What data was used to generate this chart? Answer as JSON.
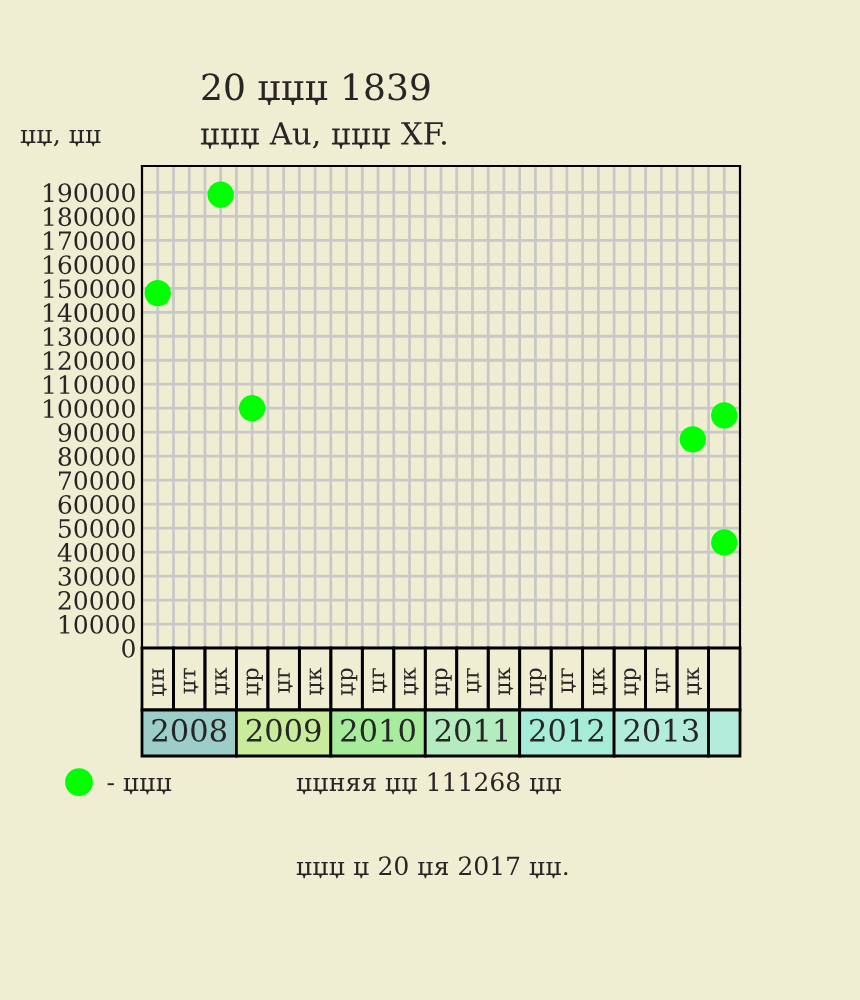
{
  "chart_data": {
    "type": "scatter",
    "title": "20 џџџ 1839",
    "subtitle": "џџџ Au, џџџ XF.",
    "ylabel": "џџ, џџ",
    "categories": [
      "џн",
      "џт",
      "џк",
      "џр",
      "џг",
      "џк",
      "џр",
      "џг",
      "џк",
      "џр",
      "џг",
      "џк",
      "џр",
      "џг",
      "џк",
      "џр",
      "џг",
      "џк",
      null
    ],
    "series": [
      {
        "name": "- џџџ",
        "color": "#00ff00",
        "values": [
          148000,
          null,
          189000,
          100000,
          null,
          null,
          null,
          null,
          null,
          null,
          null,
          null,
          null,
          null,
          null,
          null,
          null,
          87000,
          97000
        ]
      },
      {
        "color": "#00ff00",
        "values": [
          null,
          null,
          null,
          null,
          null,
          null,
          null,
          null,
          null,
          null,
          null,
          null,
          null,
          null,
          null,
          null,
          null,
          null,
          44000
        ]
      }
    ],
    "ylim": [
      0,
      201000
    ],
    "yticks": [
      0,
      10000,
      20000,
      30000,
      40000,
      50000,
      60000,
      70000,
      80000,
      90000,
      100000,
      110000,
      120000,
      130000,
      140000,
      150000,
      160000,
      170000,
      180000,
      190000
    ],
    "grid": true,
    "legend": "bottom left",
    "marker": "circle",
    "annotations": [
      "2008",
      "2009",
      "2010",
      "2011",
      "2012",
      "2013",
      "џџняя џџ 111268 џџ",
      "џџџ џ 20 џя 2017 џџ."
    ]
  }
}
